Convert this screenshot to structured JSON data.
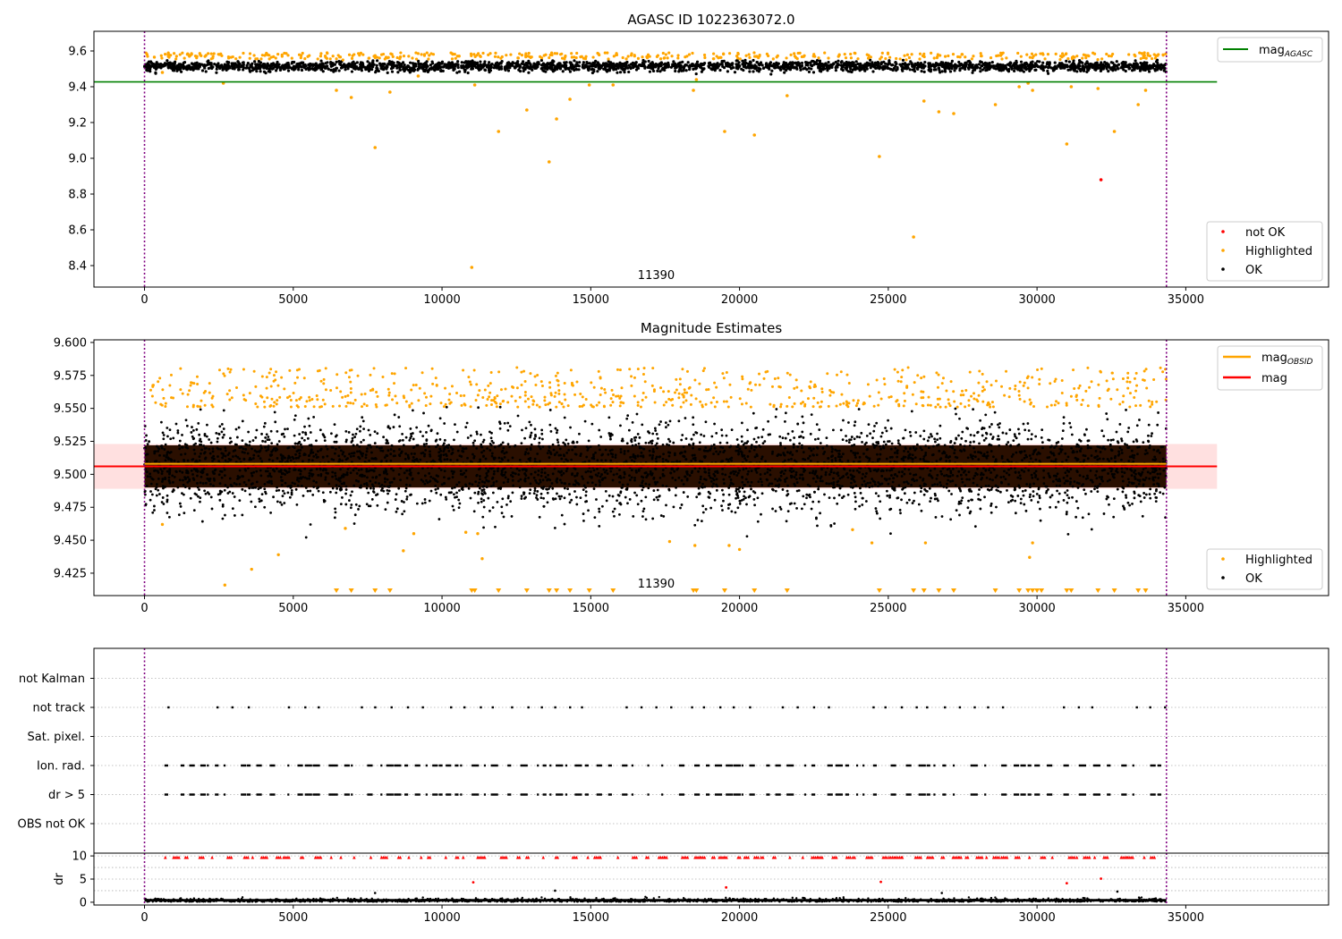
{
  "chart_data": [
    {
      "id": "agasc",
      "type": "scatter",
      "title": "AGASC ID 1022363072.0",
      "xlabel": "",
      "ylabel": "",
      "xlim": [
        -1700,
        39800
      ],
      "ylim": [
        8.28,
        9.71
      ],
      "xticks": [
        0,
        5000,
        10000,
        15000,
        20000,
        25000,
        30000,
        35000
      ],
      "yticks": [
        8.4,
        8.6,
        8.8,
        9.0,
        9.2,
        9.4,
        9.6
      ],
      "ytick_labels": [
        "8.4",
        "8.6",
        "8.8",
        "9.0",
        "9.2",
        "9.4",
        "9.6"
      ],
      "grid": false,
      "obsid_label": "11390",
      "obsid_label_x": 17200,
      "obs_boundaries": [
        0,
        34350
      ],
      "reference_line": {
        "name": "mag$_{AGASC}$",
        "label": "mag",
        "subscript": "AGASC",
        "value": 9.427,
        "x_range": [
          -1700,
          36050
        ],
        "color": "#008000"
      },
      "band": {
        "center": 9.515,
        "spread": 0.02,
        "x_range": [
          0,
          34350
        ]
      },
      "series": [
        {
          "name": "not OK",
          "color": "#ff0000",
          "points": [
            [
              32150,
              8.88
            ]
          ]
        },
        {
          "name": "Highlighted",
          "color": "#ffa500",
          "outliers": [
            [
              600,
              9.48
            ],
            [
              2650,
              9.42
            ],
            [
              6450,
              9.38
            ],
            [
              6950,
              9.34
            ],
            [
              7750,
              9.06
            ],
            [
              8250,
              9.37
            ],
            [
              9200,
              9.46
            ],
            [
              11000,
              8.39
            ],
            [
              11100,
              9.41
            ],
            [
              11900,
              9.15
            ],
            [
              12850,
              9.27
            ],
            [
              13600,
              8.98
            ],
            [
              13850,
              9.22
            ],
            [
              14300,
              9.33
            ],
            [
              14950,
              9.41
            ],
            [
              15750,
              9.41
            ],
            [
              18450,
              9.38
            ],
            [
              18550,
              9.44
            ],
            [
              19500,
              9.15
            ],
            [
              20500,
              9.13
            ],
            [
              21600,
              9.35
            ],
            [
              24700,
              9.01
            ],
            [
              25850,
              8.56
            ],
            [
              26200,
              9.32
            ],
            [
              26700,
              9.26
            ],
            [
              27200,
              9.25
            ],
            [
              28600,
              9.3
            ],
            [
              29400,
              9.4
            ],
            [
              29700,
              9.42
            ],
            [
              29850,
              9.38
            ],
            [
              31000,
              9.08
            ],
            [
              31150,
              9.4
            ],
            [
              32050,
              9.39
            ],
            [
              32600,
              9.15
            ],
            [
              33400,
              9.3
            ],
            [
              33650,
              9.38
            ]
          ]
        },
        {
          "name": "OK",
          "color": "#000000"
        }
      ],
      "legend_placement": "bottom-right",
      "line_legend_placement": "top-right"
    },
    {
      "id": "estimates",
      "type": "scatter",
      "title": "Magnitude Estimates",
      "xlabel": "",
      "ylabel": "",
      "xlim": [
        -1700,
        39800
      ],
      "ylim": [
        9.408,
        9.602
      ],
      "xticks": [
        0,
        5000,
        10000,
        15000,
        20000,
        25000,
        30000,
        35000
      ],
      "yticks": [
        9.425,
        9.45,
        9.475,
        9.5,
        9.525,
        9.55,
        9.575,
        9.6
      ],
      "ytick_labels": [
        "9.425",
        "9.450",
        "9.475",
        "9.500",
        "9.525",
        "9.550",
        "9.575",
        "9.600"
      ],
      "grid": false,
      "obsid_label": "11390",
      "obsid_label_x": 17200,
      "obs_boundaries": [
        0,
        34350
      ],
      "lines": [
        {
          "name": "mag$_{OBSID}$",
          "label": "mag",
          "subscript": "OBSID",
          "value": 9.508,
          "x_range": [
            0,
            34350
          ],
          "color": "#ffa500"
        },
        {
          "name": "mag",
          "value": 9.506,
          "x_range": [
            -1700,
            36050
          ],
          "color": "#ff0000",
          "band": [
            9.489,
            9.523
          ]
        }
      ],
      "series": [
        {
          "name": "Highlighted",
          "color": "#ffa500",
          "low_outliers": [
            [
              600,
              9.462
            ],
            [
              2700,
              9.416
            ],
            [
              3600,
              9.428
            ],
            [
              4500,
              9.439
            ],
            [
              6750,
              9.459
            ],
            [
              8700,
              9.442
            ],
            [
              9050,
              9.455
            ],
            [
              10800,
              9.456
            ],
            [
              11200,
              9.455
            ],
            [
              11350,
              9.436
            ],
            [
              17650,
              9.449
            ],
            [
              18500,
              9.446
            ],
            [
              19650,
              9.446
            ],
            [
              20000,
              9.443
            ],
            [
              23800,
              9.458
            ],
            [
              24450,
              9.448
            ],
            [
              26250,
              9.448
            ],
            [
              29750,
              9.437
            ],
            [
              29850,
              9.448
            ]
          ],
          "below_range_markers": [
            6450,
            6950,
            7750,
            8250,
            11000,
            11100,
            11900,
            12850,
            13600,
            13850,
            14300,
            14950,
            15750,
            18450,
            18550,
            19500,
            20500,
            21600,
            24700,
            25850,
            26200,
            26700,
            27200,
            28600,
            29400,
            29700,
            29850,
            30000,
            30150,
            31000,
            31150,
            32050,
            32600,
            33400,
            33650
          ]
        },
        {
          "name": "OK",
          "color": "#000000"
        }
      ],
      "legend_placement": "bottom-right",
      "line_legend_placement": "top-right"
    },
    {
      "id": "flags",
      "type": "scatter",
      "title": "",
      "xlabel": "",
      "ylabel": "",
      "categories": [
        "OBS not OK",
        "dr > 5",
        "Ion. rad.",
        "Sat. pixel.",
        "not track",
        "not Kalman"
      ],
      "flagged_x": {
        "not track": [
          800,
          2450,
          2950,
          3500,
          4850,
          5400,
          5850,
          7300,
          7750,
          8300,
          8850,
          9350,
          10300,
          10750,
          11300,
          11700,
          12350,
          12900,
          13350,
          13800,
          14300,
          14700,
          16200,
          16700,
          17200,
          17700,
          18400,
          18800,
          19350,
          19800,
          20350,
          21450,
          21950,
          22500,
          23000,
          24500,
          24900,
          25450,
          25950,
          26300,
          26900,
          27400,
          27900,
          28350,
          28850,
          30900,
          31400,
          31850,
          33350,
          33800,
          34300
        ],
        "dr > 5": [],
        "Ion. rad.": [],
        "Sat. pixel.": [],
        "OBS not OK": [],
        "not Kalman": []
      },
      "xlim": [
        -1700,
        39800
      ],
      "grid": true,
      "obs_boundaries": [
        0,
        34350
      ]
    },
    {
      "id": "dr",
      "type": "scatter",
      "title": "",
      "xlabel": "",
      "ylabel": "dr",
      "xlim": [
        -1700,
        39800
      ],
      "ylim": [
        -0.6,
        10.6
      ],
      "xticks": [
        0,
        5000,
        10000,
        15000,
        20000,
        25000,
        30000,
        35000
      ],
      "yticks": [
        0,
        5,
        10
      ],
      "grid": true,
      "obs_boundaries": [
        0,
        34350
      ],
      "series": [
        {
          "name": "OK",
          "color": "#000000",
          "values_range": [
            0,
            1
          ]
        },
        {
          "name": "dr > 5",
          "color": "#ff0000",
          "value": 9.7,
          "clipped": true
        },
        {
          "name": "not OK",
          "color": "#ff0000",
          "points": [
            [
              11050,
              4.3
            ],
            [
              19550,
              3.2
            ],
            [
              24750,
              4.4
            ],
            [
              31000,
              4.1
            ],
            [
              32150,
              5.1
            ]
          ]
        }
      ]
    }
  ]
}
